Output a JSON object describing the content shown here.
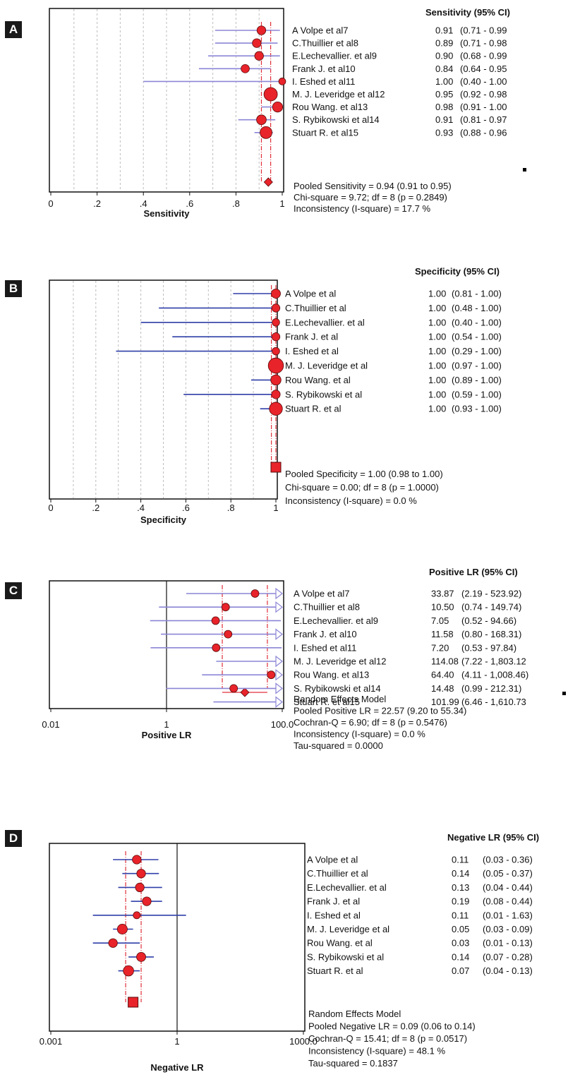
{
  "panels": [
    {
      "tag": "A",
      "type": "forest",
      "x_scale": "linear",
      "xlim": [
        0,
        1
      ],
      "xticks": [
        "0",
        ".2",
        ".4",
        ".6",
        ".8",
        "1"
      ],
      "tick_values": [
        0,
        0.2,
        0.4,
        0.6,
        0.8,
        1
      ],
      "xlabel": "Sensitivity",
      "header": "Sensitivity (95% CI)",
      "grid": "dotted-vertical",
      "null_line": null,
      "pooled_marker": "diamond",
      "ci_end": "line",
      "studies": [
        {
          "label": "A Volpe et al7",
          "value": 0.91,
          "lo": 0.71,
          "hi": 0.99,
          "value_text": "0.91",
          "ci_text": "(0.71 - 0.99",
          "weight": 0.5
        },
        {
          "label": "C.Thuillier et al8",
          "value": 0.89,
          "lo": 0.71,
          "hi": 0.98,
          "value_text": "0.89",
          "ci_text": "(0.71 - 0.98",
          "weight": 0.5
        },
        {
          "label": "E.Lechevallier. et al9",
          "value": 0.9,
          "lo": 0.68,
          "hi": 0.99,
          "value_text": "0.90",
          "ci_text": "(0.68 - 0.99",
          "weight": 0.5
        },
        {
          "label": "Frank J. et al10",
          "value": 0.84,
          "lo": 0.64,
          "hi": 0.95,
          "value_text": "0.84",
          "ci_text": "(0.64 - 0.95",
          "weight": 0.45
        },
        {
          "label": "I. Eshed et al11",
          "value": 1.0,
          "lo": 0.4,
          "hi": 1.0,
          "value_text": "1.00",
          "ci_text": "(0.40 - 1.00",
          "weight": 0.3
        },
        {
          "label": "M. J. Leveridge et al12",
          "value": 0.95,
          "lo": 0.92,
          "hi": 0.98,
          "value_text": "0.95",
          "ci_text": "(0.92 - 0.98",
          "weight": 1.0
        },
        {
          "label": "Rou Wang. et al13",
          "value": 0.98,
          "lo": 0.91,
          "hi": 1.0,
          "value_text": "0.98",
          "ci_text": "(0.91 - 1.00",
          "weight": 0.65
        },
        {
          "label": "S. Rybikowski et al14",
          "value": 0.91,
          "lo": 0.81,
          "hi": 0.97,
          "value_text": "0.91",
          "ci_text": "(0.81 - 0.97",
          "weight": 0.6
        },
        {
          "label": "Stuart R. et al15",
          "value": 0.93,
          "lo": 0.88,
          "hi": 0.96,
          "value_text": "0.93",
          "ci_text": "(0.88 - 0.96",
          "weight": 0.85
        }
      ],
      "pooled": {
        "value": 0.94,
        "lo": 0.91,
        "hi": 0.95
      },
      "summary": [
        "Pooled Sensitivity = 0.94 (0.91 to 0.95)",
        "Chi-square = 9.72; df = 8 (p = 0.2849)",
        "Inconsistency (I-square) = 17.7 %"
      ]
    },
    {
      "tag": "B",
      "type": "forest",
      "x_scale": "linear",
      "xlim": [
        0,
        1
      ],
      "xticks": [
        "0",
        ".2",
        ".4",
        ".6",
        ".8",
        "1"
      ],
      "tick_values": [
        0,
        0.2,
        0.4,
        0.6,
        0.8,
        1
      ],
      "xlabel": "Specificity",
      "header": "Specificity (95% CI)",
      "grid": "dotted-vertical",
      "null_line": null,
      "pooled_marker": "square",
      "ci_end": "line",
      "studies": [
        {
          "label": "A Volpe et al",
          "value": 1.0,
          "lo": 0.81,
          "hi": 1.0,
          "value_text": "1.00",
          "ci_text": "(0.81 - 1.00)",
          "weight": 0.45
        },
        {
          "label": "C.Thuillier et al",
          "value": 1.0,
          "lo": 0.48,
          "hi": 1.0,
          "value_text": "1.00",
          "ci_text": "(0.48 - 1.00)",
          "weight": 0.35
        },
        {
          "label": "E.Lechevallier. et al",
          "value": 1.0,
          "lo": 0.4,
          "hi": 1.0,
          "value_text": "1.00",
          "ci_text": "(0.40 - 1.00)",
          "weight": 0.3
        },
        {
          "label": "Frank J. et al",
          "value": 1.0,
          "lo": 0.54,
          "hi": 1.0,
          "value_text": "1.00",
          "ci_text": "(0.54 - 1.00)",
          "weight": 0.35
        },
        {
          "label": "I. Eshed et al",
          "value": 1.0,
          "lo": 0.29,
          "hi": 1.0,
          "value_text": "1.00",
          "ci_text": "(0.29 - 1.00)",
          "weight": 0.3
        },
        {
          "label": "M. J. Leveridge et al",
          "value": 1.0,
          "lo": 0.97,
          "hi": 1.0,
          "value_text": "1.00",
          "ci_text": "(0.97 - 1.00)",
          "weight": 1.0
        },
        {
          "label": "Rou Wang. et al",
          "value": 1.0,
          "lo": 0.89,
          "hi": 1.0,
          "value_text": "1.00",
          "ci_text": "(0.89 - 1.00)",
          "weight": 0.55
        },
        {
          "label": "S. Rybikowski et al",
          "value": 1.0,
          "lo": 0.59,
          "hi": 1.0,
          "value_text": "1.00",
          "ci_text": "(0.59 - 1.00)",
          "weight": 0.4
        },
        {
          "label": "Stuart R. et al",
          "value": 1.0,
          "lo": 0.93,
          "hi": 1.0,
          "value_text": "1.00",
          "ci_text": "(0.93 - 1.00)",
          "weight": 0.8
        }
      ],
      "pooled": {
        "value": 1.0,
        "lo": 0.98,
        "hi": 1.0
      },
      "summary": [
        "Pooled Specificity = 1.00 (0.98 to 1.00)",
        "Chi-square = 0.00; df = 8 (p = 1.0000)",
        "Inconsistency (I-square) = 0.0 %"
      ]
    },
    {
      "tag": "C",
      "type": "forest",
      "x_scale": "log",
      "xlim": [
        0.01,
        100
      ],
      "xticks": [
        "0.01",
        "1",
        "100.0"
      ],
      "tick_values": [
        0.01,
        1,
        100
      ],
      "xlabel": "Positive LR",
      "header": "Positive LR (95% CI)",
      "grid": "none",
      "null_line": 1,
      "pooled_marker": "diamond",
      "ci_end": "arrow",
      "studies": [
        {
          "label": "A Volpe et al7",
          "value": 33.87,
          "lo": 2.19,
          "hi": 523.92,
          "value_text": "33.87",
          "ci_text": "(2.19 - 523.92)",
          "weight": 0.55
        },
        {
          "label": "C.Thuillier et al8",
          "value": 10.5,
          "lo": 0.74,
          "hi": 149.74,
          "value_text": "10.50",
          "ci_text": "(0.74 - 149.74)",
          "weight": 0.55
        },
        {
          "label": "E.Lechevallier. et al9",
          "value": 7.05,
          "lo": 0.52,
          "hi": 94.66,
          "value_text": "7.05",
          "ci_text": "(0.52 - 94.66)",
          "weight": 0.55
        },
        {
          "label": "Frank J. et al10",
          "value": 11.58,
          "lo": 0.8,
          "hi": 168.31,
          "value_text": "11.58",
          "ci_text": "(0.80 - 168.31)",
          "weight": 0.55
        },
        {
          "label": "I. Eshed et al11",
          "value": 7.2,
          "lo": 0.53,
          "hi": 97.84,
          "value_text": "7.20",
          "ci_text": "(0.53 - 97.84)",
          "weight": 0.55
        },
        {
          "label": "M. J. Leveridge et al12",
          "value": 114.08,
          "lo": 7.22,
          "hi": 1803.12,
          "value_text": "114.08",
          "ci_text": "(7.22 - 1,803.12",
          "weight": 0.0
        },
        {
          "label": "Rou Wang. et al13",
          "value": 64.4,
          "lo": 4.11,
          "hi": 1008.46,
          "value_text": "64.40",
          "ci_text": "(4.11 - 1,008.46)",
          "weight": 0.55
        },
        {
          "label": "S. Rybikowski et al14",
          "value": 14.48,
          "lo": 0.99,
          "hi": 212.31,
          "value_text": "14.48",
          "ci_text": "(0.99 - 212.31)",
          "weight": 0.55
        },
        {
          "label": "Stuart R. et al15",
          "value": 101.99,
          "lo": 6.46,
          "hi": 1610.73,
          "value_text": "101.99",
          "ci_text": "(6.46 - 1,610.73",
          "weight": 0.0
        }
      ],
      "pooled": {
        "value": 22.57,
        "lo": 9.2,
        "hi": 55.34
      },
      "summary": [
        "Random Effects Model",
        "Pooled Positive LR = 22.57 (9.20 to 55.34)",
        "Cochran-Q = 6.90; df = 8 (p = 0.5476)",
        "Inconsistency (I-square) = 0.0 %",
        "Tau-squared = 0.0000"
      ]
    },
    {
      "tag": "D",
      "type": "forest",
      "x_scale": "log",
      "xlim": [
        0.001,
        1000
      ],
      "xticks": [
        "0.001",
        "1",
        "1000.0"
      ],
      "tick_values": [
        0.001,
        1,
        1000
      ],
      "xlabel": "Negative LR",
      "header": "Negative LR (95% CI)",
      "grid": "none",
      "null_line": 1,
      "pooled_marker": "square",
      "ci_end": "line",
      "studies": [
        {
          "label": "A Volpe et al",
          "value": 0.11,
          "lo": 0.03,
          "hi": 0.36,
          "value_text": "0.11",
          "ci_text": "(0.03 - 0.36)",
          "weight": 0.55
        },
        {
          "label": "C.Thuillier et al",
          "value": 0.14,
          "lo": 0.05,
          "hi": 0.37,
          "value_text": "0.14",
          "ci_text": "(0.05 - 0.37)",
          "weight": 0.55
        },
        {
          "label": "E.Lechevallier. et al",
          "value": 0.13,
          "lo": 0.04,
          "hi": 0.44,
          "value_text": "0.13",
          "ci_text": "(0.04 - 0.44)",
          "weight": 0.55
        },
        {
          "label": "Frank J. et al",
          "value": 0.19,
          "lo": 0.08,
          "hi": 0.44,
          "value_text": "0.19",
          "ci_text": "(0.08 - 0.44)",
          "weight": 0.55
        },
        {
          "label": "I. Eshed et al",
          "value": 0.11,
          "lo": 0.01,
          "hi": 1.63,
          "value_text": "0.11",
          "ci_text": "(0.01 - 1.63)",
          "weight": 0.35
        },
        {
          "label": "M. J. Leveridge et al",
          "value": 0.05,
          "lo": 0.03,
          "hi": 0.09,
          "value_text": "0.05",
          "ci_text": "(0.03 - 0.09)",
          "weight": 0.7
        },
        {
          "label": "Rou Wang. et al",
          "value": 0.03,
          "lo": 0.01,
          "hi": 0.13,
          "value_text": "0.03",
          "ci_text": "(0.01 - 0.13)",
          "weight": 0.55
        },
        {
          "label": "S. Rybikowski et al",
          "value": 0.14,
          "lo": 0.07,
          "hi": 0.28,
          "value_text": "0.14",
          "ci_text": "(0.07 - 0.28)",
          "weight": 0.6
        },
        {
          "label": "Stuart R. et al",
          "value": 0.07,
          "lo": 0.04,
          "hi": 0.13,
          "value_text": "0.07",
          "ci_text": "(0.04 - 0.13)",
          "weight": 0.75
        }
      ],
      "pooled": {
        "value": 0.09,
        "lo": 0.06,
        "hi": 0.14
      },
      "summary": [
        "Random Effects Model",
        "Pooled Negative LR = 0.09 (0.06 to 0.14)",
        "Cochran-Q = 15.41; df = 8 (p = 0.0517)",
        "Inconsistency (I-square) = 48.1 %",
        "Tau-squared = 0.1837"
      ]
    }
  ],
  "chart_data": [
    {
      "type": "scatter",
      "title": "Sensitivity (95% CI)",
      "xlabel": "Sensitivity",
      "xlim": [
        0,
        1
      ],
      "grid": true,
      "series": [
        {
          "categories": [
            "A Volpe et al7",
            "C.Thuillier et al8",
            "E.Lechevallier. et al9",
            "Frank J. et al10",
            "I. Eshed et al11",
            "M. J. Leveridge et al12",
            "Rou Wang. et al13",
            "S. Rybikowski et al14",
            "Stuart R. et al15"
          ],
          "values": [
            0.91,
            0.89,
            0.9,
            0.84,
            1.0,
            0.95,
            0.98,
            0.91,
            0.93
          ],
          "ci_low": [
            0.71,
            0.71,
            0.68,
            0.64,
            0.4,
            0.92,
            0.91,
            0.81,
            0.88
          ],
          "ci_high": [
            0.99,
            0.98,
            0.99,
            0.95,
            1.0,
            0.98,
            1.0,
            0.97,
            0.96
          ]
        }
      ],
      "pooled": [
        0.94,
        0.91,
        0.95
      ]
    },
    {
      "type": "scatter",
      "title": "Specificity (95% CI)",
      "xlabel": "Specificity",
      "xlim": [
        0,
        1
      ],
      "grid": true,
      "series": [
        {
          "categories": [
            "A Volpe et al",
            "C.Thuillier et al",
            "E.Lechevallier. et al",
            "Frank J. et al",
            "I. Eshed et al",
            "M. J. Leveridge et al",
            "Rou Wang. et al",
            "S. Rybikowski et al",
            "Stuart R. et al"
          ],
          "values": [
            1.0,
            1.0,
            1.0,
            1.0,
            1.0,
            1.0,
            1.0,
            1.0,
            1.0
          ],
          "ci_low": [
            0.81,
            0.48,
            0.4,
            0.54,
            0.29,
            0.97,
            0.89,
            0.59,
            0.93
          ],
          "ci_high": [
            1.0,
            1.0,
            1.0,
            1.0,
            1.0,
            1.0,
            1.0,
            1.0,
            1.0
          ]
        }
      ],
      "pooled": [
        1.0,
        0.98,
        1.0
      ]
    },
    {
      "type": "scatter",
      "title": "Positive LR (95% CI)",
      "xlabel": "Positive LR",
      "xlim": [
        0.01,
        100
      ],
      "x_scale": "log",
      "grid": false,
      "series": [
        {
          "categories": [
            "A Volpe et al7",
            "C.Thuillier et al8",
            "E.Lechevallier. et al9",
            "Frank J. et al10",
            "I. Eshed et al11",
            "M. J. Leveridge et al12",
            "Rou Wang. et al13",
            "S. Rybikowski et al14",
            "Stuart R. et al15"
          ],
          "values": [
            33.87,
            10.5,
            7.05,
            11.58,
            7.2,
            114.08,
            64.4,
            14.48,
            101.99
          ],
          "ci_low": [
            2.19,
            0.74,
            0.52,
            0.8,
            0.53,
            7.22,
            4.11,
            0.99,
            6.46
          ],
          "ci_high": [
            523.92,
            149.74,
            94.66,
            168.31,
            97.84,
            1803.12,
            1008.46,
            212.31,
            1610.73
          ]
        }
      ],
      "pooled": [
        22.57,
        9.2,
        55.34
      ]
    },
    {
      "type": "scatter",
      "title": "Negative LR (95% CI)",
      "xlabel": "Negative LR",
      "xlim": [
        0.001,
        1000
      ],
      "x_scale": "log",
      "grid": false,
      "series": [
        {
          "categories": [
            "A Volpe et al",
            "C.Thuillier et al",
            "E.Lechevallier. et al",
            "Frank J. et al",
            "I. Eshed et al",
            "M. J. Leveridge et al",
            "Rou Wang. et al",
            "S. Rybikowski et al",
            "Stuart R. et al"
          ],
          "values": [
            0.11,
            0.14,
            0.13,
            0.19,
            0.11,
            0.05,
            0.03,
            0.14,
            0.07
          ],
          "ci_low": [
            0.03,
            0.05,
            0.04,
            0.08,
            0.01,
            0.03,
            0.01,
            0.07,
            0.04
          ],
          "ci_high": [
            0.36,
            0.37,
            0.44,
            0.44,
            1.63,
            0.09,
            0.13,
            0.28,
            0.13
          ]
        }
      ],
      "pooled": [
        0.09,
        0.06,
        0.14
      ]
    }
  ],
  "colors": {
    "marker_fill": "#e8232a",
    "marker_stroke": "#5a0a0a",
    "ci_line_blue": "#2f3fa8",
    "ci_line_lavender": "#8b86d6",
    "ref_line": "#e0303a",
    "grid": "#bdbdbd",
    "axis": "#111111"
  }
}
